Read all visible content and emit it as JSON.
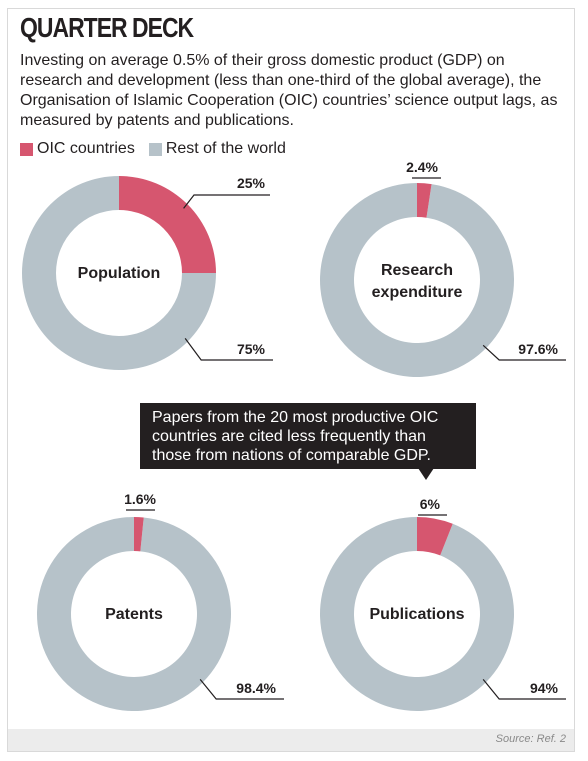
{
  "title": "QUARTER DECK",
  "intro": "Investing on average 0.5% of their gross domestic product (GDP) on research and development (less than one-third of the global average), the Organisation of Islamic Cooperation (OIC) countries’ science output lags, as measured by patents and publications.",
  "legend": {
    "oic": "OIC countries",
    "rest": "Rest of the world"
  },
  "colors": {
    "oic": "#d6566f",
    "rest": "#b6c2c9",
    "leader": "#231f20"
  },
  "callout": "Papers from the 20 most productive OIC countries are cited less frequently than those from nations of comparable GDP.",
  "source": "Source: Ref. 2",
  "chart_data": [
    {
      "type": "pie",
      "title": "Population",
      "labels": [
        "OIC countries",
        "Rest of the world"
      ],
      "values": [
        25,
        75
      ],
      "value_labels": [
        "25%",
        "75%"
      ]
    },
    {
      "type": "pie",
      "title": "Research expenditure",
      "labels": [
        "OIC countries",
        "Rest of the world"
      ],
      "values": [
        2.4,
        97.6
      ],
      "value_labels": [
        "2.4%",
        "97.6%"
      ]
    },
    {
      "type": "pie",
      "title": "Patents",
      "labels": [
        "OIC countries",
        "Rest of the world"
      ],
      "values": [
        1.6,
        98.4
      ],
      "value_labels": [
        "1.6%",
        "98.4%"
      ]
    },
    {
      "type": "pie",
      "title": "Publications",
      "labels": [
        "OIC countries",
        "Rest of the world"
      ],
      "values": [
        6,
        94
      ],
      "value_labels": [
        "6%",
        "94%"
      ]
    }
  ]
}
